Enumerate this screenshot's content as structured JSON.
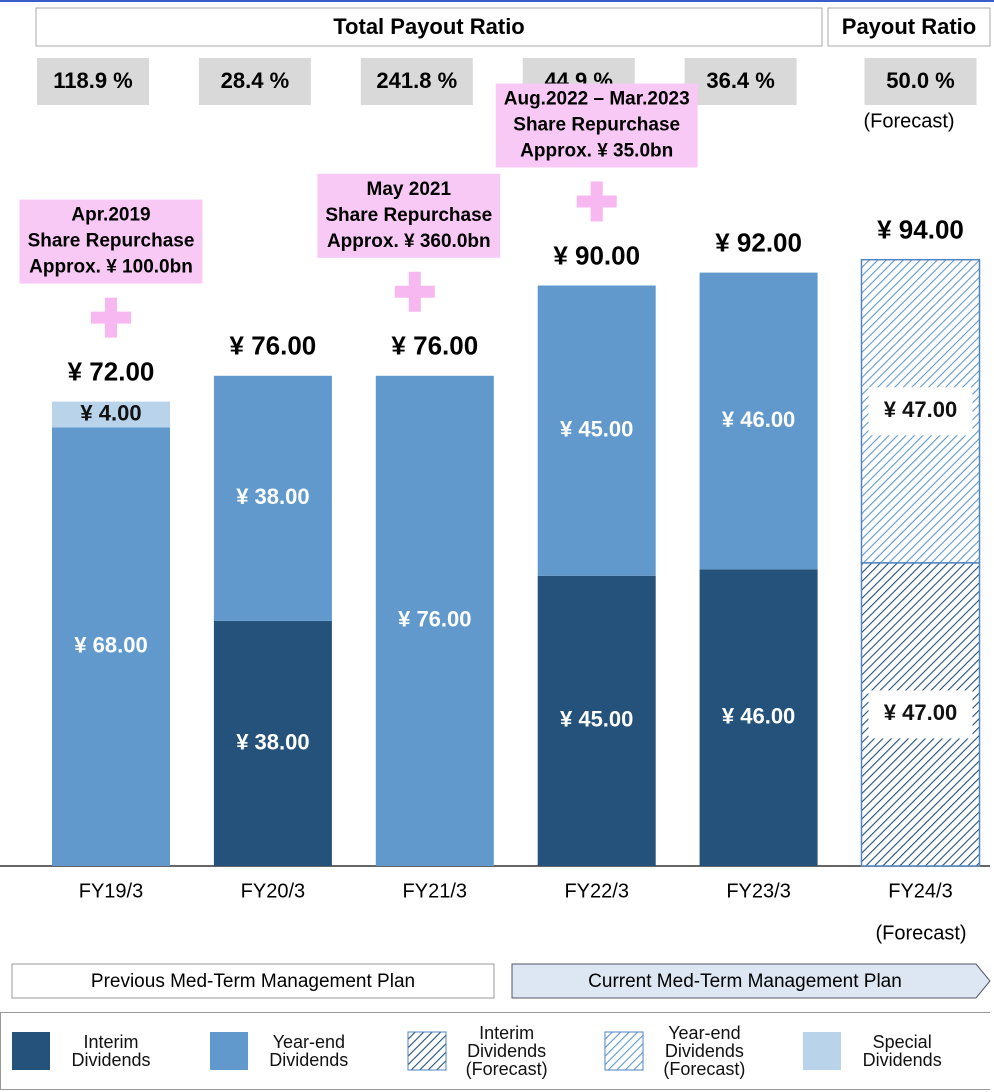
{
  "chart_data": {
    "type": "bar",
    "categories": [
      "FY19/3",
      "FY20/3",
      "FY21/3",
      "FY22/3",
      "FY23/3",
      "FY24/3"
    ],
    "category_note": "(Forecast)",
    "series": [
      {
        "name": "Interim Dividends",
        "color": "#24527a",
        "hatched": false,
        "values": [
          null,
          38,
          null,
          45,
          46,
          null
        ],
        "value_labels": [
          null,
          "¥ 38.00",
          null,
          "¥ 45.00",
          "¥ 46.00",
          null
        ]
      },
      {
        "name": "Year-end Dividends",
        "color": "#6199cc",
        "hatched": false,
        "values": [
          68,
          38,
          76,
          45,
          46,
          null
        ],
        "value_labels": [
          "¥ 68.00",
          "¥ 38.00",
          "¥ 76.00",
          "¥ 45.00",
          "¥ 46.00",
          null
        ]
      },
      {
        "name": "Interim Dividends (Forecast)",
        "color": "#24527a",
        "hatched": true,
        "values": [
          null,
          null,
          null,
          null,
          null,
          47
        ],
        "value_labels": [
          null,
          null,
          null,
          null,
          null,
          "¥ 47.00"
        ]
      },
      {
        "name": "Year-end Dividends (Forecast)",
        "color": "#6199cc",
        "hatched": true,
        "values": [
          null,
          null,
          null,
          null,
          null,
          47
        ],
        "value_labels": [
          null,
          null,
          null,
          null,
          null,
          "¥ 47.00"
        ]
      },
      {
        "name": "Special Dividends",
        "color": "#b8d3ea",
        "hatched": false,
        "values": [
          4,
          null,
          null,
          null,
          null,
          null
        ],
        "value_labels": [
          "¥ 4.00",
          null,
          null,
          null,
          null,
          null
        ]
      }
    ],
    "totals": {
      "values": [
        72,
        76,
        76,
        90,
        92,
        94
      ],
      "value_labels": [
        "¥ 72.00",
        "¥ 76.00",
        "¥ 76.00",
        "¥ 90.00",
        "¥ 92.00",
        "¥ 94.00"
      ]
    },
    "ratio_headers": [
      "Total Payout Ratio",
      "Payout Ratio"
    ],
    "payout_ratios": [
      "118.9 %",
      "28.4 %",
      "241.8 %",
      "44.9 %",
      "36.4 %",
      "50.0 %"
    ],
    "payout_note": "(Forecast)",
    "annotations": [
      [
        "Apr.2019",
        "Share Repurchase",
        "Approx. ¥ 100.0bn"
      ],
      null,
      [
        "May 2021",
        "Share Repurchase",
        "Approx. ¥ 360.0bn"
      ],
      [
        "Aug.2022 – Mar.2023",
        "Share Repurchase",
        "Approx. ¥ 35.0bn"
      ],
      null,
      null
    ],
    "plans": [
      "Previous Med-Term Management Plan",
      "Current Med-Term Management Plan"
    ]
  }
}
